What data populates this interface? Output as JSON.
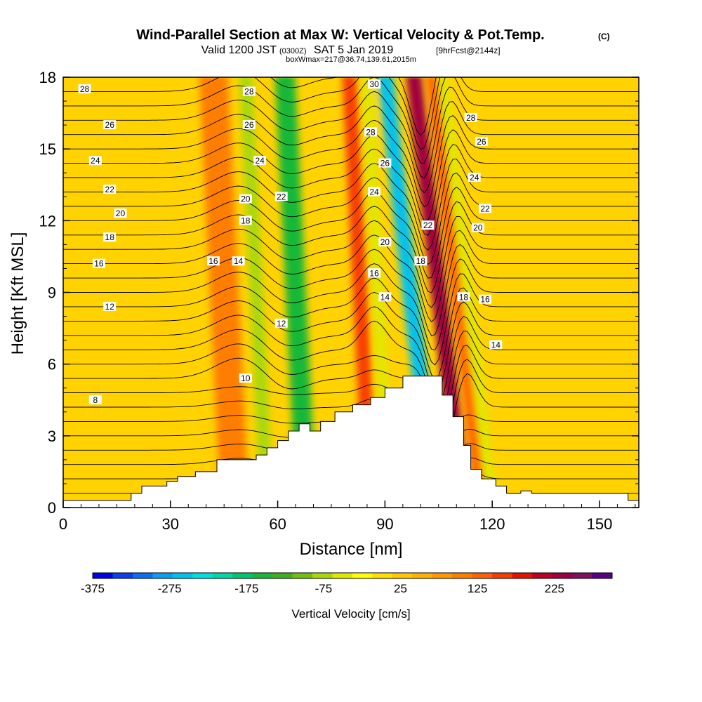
{
  "title": {
    "main": "Wind-Parallel Section at Max W: Vertical Velocity & Pot.Temp.",
    "main_suffix": "(C)",
    "valid_prefix": "Valid 1200 JST",
    "valid_utc": "(0300Z)",
    "valid_date": "SAT 5 Jan 2019",
    "forecast_info": "[9hrFcst@2144z]",
    "box_info": "boxWmax=217@36.74,139.61,2015m"
  },
  "chart_data": {
    "type": "heatmap",
    "xlabel": "Distance [nm]",
    "ylabel": "Height [Kft MSL]",
    "xlim": [
      0,
      161
    ],
    "ylim": [
      0,
      18
    ],
    "x_ticks": [
      0,
      30,
      60,
      90,
      120,
      150
    ],
    "y_ticks": [
      0,
      3,
      6,
      9,
      12,
      15,
      18
    ],
    "colorbar": {
      "label": "Vertical Velocity [cm/s]",
      "tick_labels": [
        "-375",
        "-275",
        "-175",
        "-75",
        "25",
        "125",
        "225"
      ],
      "tick_values": [
        -375,
        -275,
        -175,
        -75,
        25,
        125,
        225
      ],
      "min": -375,
      "max": 300,
      "step": 25,
      "colors": [
        "#0000ee",
        "#0a3ef0",
        "#0a6ef2",
        "#0a9ef4",
        "#00c2f0",
        "#00e0e0",
        "#00d8a8",
        "#00c870",
        "#18b838",
        "#40b020",
        "#70c010",
        "#a8d808",
        "#e0e800",
        "#ffff00",
        "#ffe000",
        "#ffc800",
        "#ffb000",
        "#ff9800",
        "#ff7e00",
        "#ff6200",
        "#f83c00",
        "#e81000",
        "#c00020",
        "#a00040",
        "#801060",
        "#58008a"
      ]
    },
    "velocity_features": [
      {
        "x": 48,
        "w": 4,
        "value": 85
      },
      {
        "x": 57,
        "w": 1.8,
        "value": -80
      },
      {
        "x": 68,
        "w": 2.8,
        "value": -175
      },
      {
        "x": 86,
        "w": 2,
        "value": 140
      },
      {
        "x": 91,
        "w": 1.5,
        "value": -60
      },
      {
        "x": 104,
        "w": 2.2,
        "value": -260
      },
      {
        "x": 112,
        "w": 2.2,
        "value": 217
      },
      {
        "x": 117,
        "w": 1.5,
        "value": 110
      },
      {
        "x": 120,
        "w": 1.5,
        "value": -70
      }
    ],
    "terrain": [
      [
        0,
        0.3
      ],
      [
        19,
        0.3
      ],
      [
        19,
        0.6
      ],
      [
        22,
        0.6
      ],
      [
        22,
        0.9
      ],
      [
        29,
        0.9
      ],
      [
        29,
        1.1
      ],
      [
        32,
        1.1
      ],
      [
        32,
        1.3
      ],
      [
        37,
        1.3
      ],
      [
        37,
        1.5
      ],
      [
        43,
        1.5
      ],
      [
        43,
        2.0
      ],
      [
        54,
        2.0
      ],
      [
        54,
        2.2
      ],
      [
        57,
        2.2
      ],
      [
        57,
        2.5
      ],
      [
        60,
        2.5
      ],
      [
        60,
        2.8
      ],
      [
        63,
        2.8
      ],
      [
        63,
        3.2
      ],
      [
        66,
        3.2
      ],
      [
        66,
        3.5
      ],
      [
        69,
        3.5
      ],
      [
        69,
        3.2
      ],
      [
        72,
        3.2
      ],
      [
        72,
        3.6
      ],
      [
        76,
        3.6
      ],
      [
        76,
        4.0
      ],
      [
        81,
        4.0
      ],
      [
        81,
        4.3
      ],
      [
        86,
        4.3
      ],
      [
        86,
        4.6
      ],
      [
        90,
        4.6
      ],
      [
        90,
        5.0
      ],
      [
        95,
        5.0
      ],
      [
        95,
        5.5
      ],
      [
        106,
        5.5
      ],
      [
        106,
        4.7
      ],
      [
        109,
        4.7
      ],
      [
        109,
        3.8
      ],
      [
        112,
        3.8
      ],
      [
        112,
        2.6
      ],
      [
        114,
        2.6
      ],
      [
        114,
        1.6
      ],
      [
        117,
        1.6
      ],
      [
        117,
        1.2
      ],
      [
        121,
        1.2
      ],
      [
        121,
        0.9
      ],
      [
        124,
        0.9
      ],
      [
        124,
        0.6
      ],
      [
        128,
        0.6
      ],
      [
        128,
        0.7
      ],
      [
        131,
        0.7
      ],
      [
        131,
        0.6
      ],
      [
        158,
        0.6
      ],
      [
        158,
        0.3
      ],
      [
        161,
        0.3
      ]
    ],
    "isentrope_labels": [
      {
        "x": 6,
        "y": 17.5,
        "text": "28"
      },
      {
        "x": 13,
        "y": 16.0,
        "text": "26"
      },
      {
        "x": 9,
        "y": 14.5,
        "text": "24"
      },
      {
        "x": 13,
        "y": 13.3,
        "text": "22"
      },
      {
        "x": 16,
        "y": 12.3,
        "text": "20"
      },
      {
        "x": 13,
        "y": 11.3,
        "text": "18"
      },
      {
        "x": 10,
        "y": 10.2,
        "text": "16"
      },
      {
        "x": 13,
        "y": 8.4,
        "text": "12"
      },
      {
        "x": 9,
        "y": 4.5,
        "text": "8"
      },
      {
        "x": 52,
        "y": 17.4,
        "text": "28"
      },
      {
        "x": 52,
        "y": 16.0,
        "text": "26"
      },
      {
        "x": 55,
        "y": 14.5,
        "text": "24"
      },
      {
        "x": 51,
        "y": 12.9,
        "text": "20"
      },
      {
        "x": 61,
        "y": 13.0,
        "text": "22"
      },
      {
        "x": 51,
        "y": 12.0,
        "text": "18"
      },
      {
        "x": 42,
        "y": 10.3,
        "text": "16"
      },
      {
        "x": 49,
        "y": 10.3,
        "text": "14"
      },
      {
        "x": 61,
        "y": 7.7,
        "text": "12"
      },
      {
        "x": 51,
        "y": 5.4,
        "text": "10"
      },
      {
        "x": 87,
        "y": 17.7,
        "text": "30"
      },
      {
        "x": 86,
        "y": 15.7,
        "text": "28"
      },
      {
        "x": 90,
        "y": 14.4,
        "text": "26"
      },
      {
        "x": 87,
        "y": 13.2,
        "text": "24"
      },
      {
        "x": 90,
        "y": 11.1,
        "text": "20"
      },
      {
        "x": 87,
        "y": 9.8,
        "text": "16"
      },
      {
        "x": 90,
        "y": 8.8,
        "text": "14"
      },
      {
        "x": 102,
        "y": 11.8,
        "text": "22"
      },
      {
        "x": 100,
        "y": 10.3,
        "text": "18"
      },
      {
        "x": 114,
        "y": 16.3,
        "text": "28"
      },
      {
        "x": 117,
        "y": 15.3,
        "text": "26"
      },
      {
        "x": 115,
        "y": 13.8,
        "text": "24"
      },
      {
        "x": 118,
        "y": 12.5,
        "text": "22"
      },
      {
        "x": 116,
        "y": 11.7,
        "text": "20"
      },
      {
        "x": 112,
        "y": 8.8,
        "text": "18"
      },
      {
        "x": 118,
        "y": 8.7,
        "text": "16"
      },
      {
        "x": 121,
        "y": 6.8,
        "text": "14"
      }
    ]
  }
}
